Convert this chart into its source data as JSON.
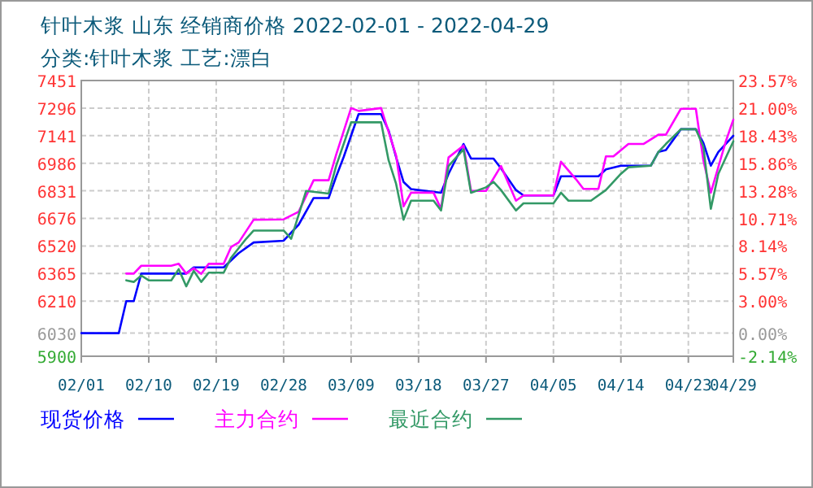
{
  "chart_data": {
    "type": "line",
    "title": "针叶木浆 山东 经销商价格 2022-02-01 - 2022-04-29",
    "subtitle": "分类:针叶木浆 工艺:漂白",
    "xlim": [
      "2022-02-01",
      "2022-04-29"
    ],
    "xticks": [
      {
        "value": "2022-02-01",
        "label": "02/01"
      },
      {
        "value": "2022-02-10",
        "label": "02/10"
      },
      {
        "value": "2022-02-19",
        "label": "02/19"
      },
      {
        "value": "2022-02-28",
        "label": "02/28"
      },
      {
        "value": "2022-03-09",
        "label": "03/09"
      },
      {
        "value": "2022-03-18",
        "label": "03/18"
      },
      {
        "value": "2022-03-27",
        "label": "03/27"
      },
      {
        "value": "2022-04-05",
        "label": "04/05"
      },
      {
        "value": "2022-04-14",
        "label": "04/14"
      },
      {
        "value": "2022-04-23",
        "label": "04/23"
      },
      {
        "value": "2022-04-29",
        "label": "04/29"
      }
    ],
    "ylim": [
      5900,
      7451
    ],
    "yticks": [
      5900,
      6030,
      6210,
      6365,
      6520,
      6676,
      6831,
      6986,
      7141,
      7296,
      7451
    ],
    "y2lim": [
      -2.14,
      23.57
    ],
    "y2ticks": [
      {
        "value": -2.14,
        "label": "-2.14%"
      },
      {
        "value": 0,
        "label": "0.00%"
      },
      {
        "value": 3,
        "label": "3.00%"
      },
      {
        "value": 5.57,
        "label": "5.57%"
      },
      {
        "value": 8.14,
        "label": "8.14%"
      },
      {
        "value": 10.71,
        "label": "10.71%"
      },
      {
        "value": 13.28,
        "label": "13.28%"
      },
      {
        "value": 15.86,
        "label": "15.86%"
      },
      {
        "value": 18.43,
        "label": "18.43%"
      },
      {
        "value": 21,
        "label": "21.00%"
      },
      {
        "value": 23.57,
        "label": "23.57%"
      }
    ],
    "grid": true,
    "legend": "bottom",
    "line_style": "solid",
    "marker": "none",
    "series": [
      {
        "name": "现货价格",
        "color": "#0000ff",
        "x": [
          "2022-02-01",
          "2022-02-06",
          "2022-02-07",
          "2022-02-08",
          "2022-02-09",
          "2022-02-15",
          "2022-02-16",
          "2022-02-20",
          "2022-02-21",
          "2022-02-22",
          "2022-02-24",
          "2022-02-28",
          "2022-03-02",
          "2022-03-04",
          "2022-03-06",
          "2022-03-07",
          "2022-03-08",
          "2022-03-10",
          "2022-03-13",
          "2022-03-14",
          "2022-03-15",
          "2022-03-16",
          "2022-03-17",
          "2022-03-21",
          "2022-03-22",
          "2022-03-24",
          "2022-03-25",
          "2022-03-28",
          "2022-03-29",
          "2022-03-31",
          "2022-04-01",
          "2022-04-05",
          "2022-04-06",
          "2022-04-11",
          "2022-04-12",
          "2022-04-14",
          "2022-04-18",
          "2022-04-19",
          "2022-04-20",
          "2022-04-22",
          "2022-04-24",
          "2022-04-25",
          "2022-04-26",
          "2022-04-27",
          "2022-04-29"
        ],
        "values": [
          6030,
          6030,
          6210,
          6210,
          6365,
          6365,
          6400,
          6400,
          6440,
          6480,
          6540,
          6550,
          6640,
          6790,
          6790,
          6910,
          7020,
          7262,
          7262,
          7170,
          7020,
          6880,
          6840,
          6820,
          6926,
          7094,
          7012,
          7012,
          6957,
          6835,
          6805,
          6805,
          6912,
          6912,
          6951,
          6972,
          6972,
          7049,
          7060,
          7177,
          7177,
          7100,
          6972,
          7049,
          7140
        ]
      },
      {
        "name": "主力合约",
        "color": "#ff00ff",
        "x": [
          "2022-02-07",
          "2022-02-08",
          "2022-02-09",
          "2022-02-13",
          "2022-02-14",
          "2022-02-15",
          "2022-02-16",
          "2022-02-17",
          "2022-02-18",
          "2022-02-20",
          "2022-02-21",
          "2022-02-22",
          "2022-02-24",
          "2022-02-28",
          "2022-03-02",
          "2022-03-04",
          "2022-03-06",
          "2022-03-07",
          "2022-03-09",
          "2022-03-10",
          "2022-03-13",
          "2022-03-15",
          "2022-03-16",
          "2022-03-17",
          "2022-03-20",
          "2022-03-21",
          "2022-03-22",
          "2022-03-24",
          "2022-03-25",
          "2022-03-27",
          "2022-03-29",
          "2022-03-31",
          "2022-04-01",
          "2022-04-05",
          "2022-04-06",
          "2022-04-08",
          "2022-04-09",
          "2022-04-11",
          "2022-04-12",
          "2022-04-13",
          "2022-04-15",
          "2022-04-17",
          "2022-04-19",
          "2022-04-20",
          "2022-04-22",
          "2022-04-24",
          "2022-04-25",
          "2022-04-26",
          "2022-04-28",
          "2022-04-29"
        ],
        "values": [
          6365,
          6365,
          6409,
          6409,
          6420,
          6365,
          6395,
          6363,
          6420,
          6420,
          6515,
          6540,
          6668,
          6670,
          6713,
          6890,
          6890,
          7033,
          7296,
          7280,
          7296,
          7030,
          6743,
          6820,
          6820,
          6729,
          7018,
          7085,
          6830,
          6830,
          6970,
          6775,
          6805,
          6805,
          6994,
          6896,
          6841,
          6841,
          7024,
          7024,
          7094,
          7094,
          7146,
          7146,
          7292,
          7292,
          7003,
          6820,
          7109,
          7231
        ]
      },
      {
        "name": "最近合约",
        "color": "#339966",
        "x": [
          "2022-02-07",
          "2022-02-08",
          "2022-02-09",
          "2022-02-10",
          "2022-02-13",
          "2022-02-14",
          "2022-02-15",
          "2022-02-16",
          "2022-02-17",
          "2022-02-18",
          "2022-02-20",
          "2022-02-21",
          "2022-02-23",
          "2022-02-24",
          "2022-02-28",
          "2022-03-01",
          "2022-03-03",
          "2022-03-06",
          "2022-03-07",
          "2022-03-09",
          "2022-03-10",
          "2022-03-13",
          "2022-03-14",
          "2022-03-15",
          "2022-03-16",
          "2022-03-17",
          "2022-03-20",
          "2022-03-21",
          "2022-03-22",
          "2022-03-24",
          "2022-03-25",
          "2022-03-27",
          "2022-03-28",
          "2022-03-29",
          "2022-03-31",
          "2022-04-01",
          "2022-04-05",
          "2022-04-06",
          "2022-04-07",
          "2022-04-10",
          "2022-04-12",
          "2022-04-14",
          "2022-04-15",
          "2022-04-18",
          "2022-04-19",
          "2022-04-20",
          "2022-04-22",
          "2022-04-24",
          "2022-04-25",
          "2022-04-26",
          "2022-04-27",
          "2022-04-29"
        ],
        "values": [
          6327,
          6318,
          6354,
          6327,
          6327,
          6390,
          6293,
          6380,
          6318,
          6370,
          6370,
          6455,
          6561,
          6607,
          6607,
          6561,
          6830,
          6815,
          6970,
          7216,
          7216,
          7216,
          7003,
          6870,
          6668,
          6775,
          6775,
          6720,
          6970,
          7064,
          6820,
          6850,
          6881,
          6835,
          6720,
          6760,
          6760,
          6820,
          6775,
          6775,
          6835,
          6926,
          6963,
          6972,
          7049,
          7094,
          7177,
          7177,
          7079,
          6729,
          6926,
          7109
        ]
      }
    ]
  }
}
